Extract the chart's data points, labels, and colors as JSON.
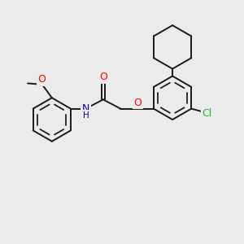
{
  "background_color": "#ebebeb",
  "bond_color": "#1a1a1a",
  "bond_width": 1.4,
  "O_color": "#ff0000",
  "N_color": "#0000cc",
  "Cl_color": "#22bb22",
  "font_size": 8.5,
  "figsize": [
    3.0,
    3.0
  ],
  "dpi": 100,
  "xlim": [
    0,
    10
  ],
  "ylim": [
    0,
    10
  ]
}
